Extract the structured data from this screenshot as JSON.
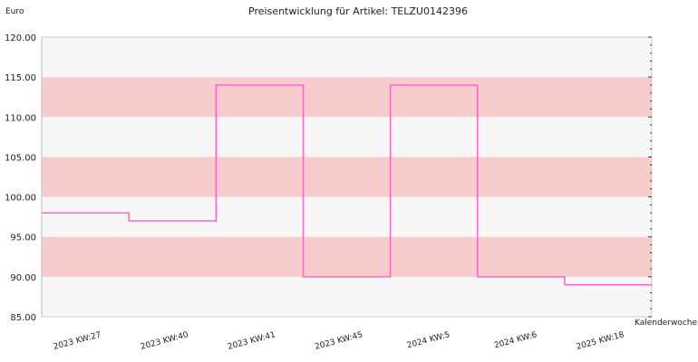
{
  "chart_data": {
    "type": "line",
    "title": "Preisentwicklung für Artikel: TELZU0142396",
    "ylabel": "Euro",
    "xlabel": "Kalenderwoche",
    "ylim": [
      85,
      120
    ],
    "yticks": [
      85,
      90,
      95,
      100,
      105,
      110,
      115,
      120
    ],
    "ytick_labels": [
      "85.00",
      "90.00",
      "95.00",
      "100.00",
      "105.00",
      "110.00",
      "115.00",
      "120.00"
    ],
    "categories": [
      "2023 KW:27",
      "2023 KW:40",
      "2023 KW:41",
      "2023 KW:45",
      "2024 KW:5",
      "2024 KW:6",
      "2025 KW:18"
    ],
    "step": true,
    "series": [
      {
        "values": [
          98.0,
          97.0,
          114.0,
          90.0,
          114.0,
          90.0,
          89.0
        ]
      }
    ],
    "line_color": "#ff66cc",
    "band_colors": [
      "#f7f7f7",
      "#f8cccc"
    ],
    "grid": true,
    "legend": "none"
  }
}
